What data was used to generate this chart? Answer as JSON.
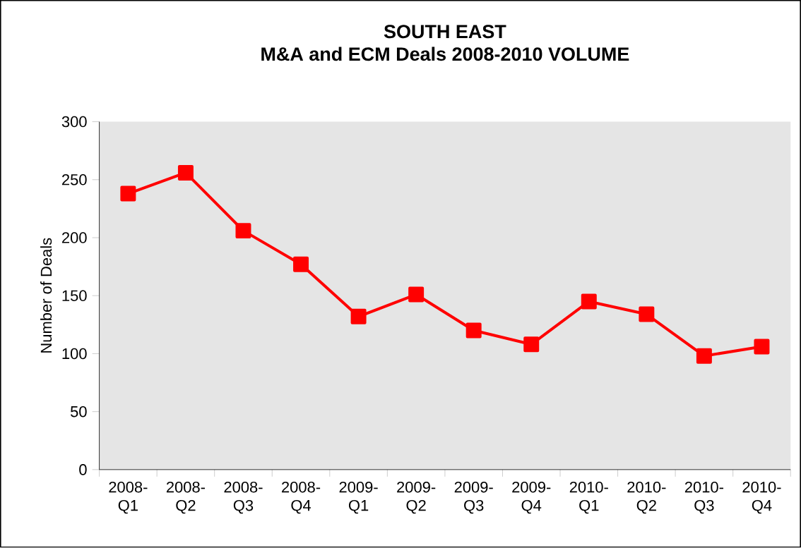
{
  "chart_data": {
    "type": "line",
    "title": "SOUTH EAST",
    "subtitle": "M&A and ECM Deals 2008-2010 VOLUME",
    "ylabel": "Number of Deals",
    "categories": [
      "2008-Q1",
      "2008-Q2",
      "2008-Q3",
      "2008-Q4",
      "2009-Q1",
      "2009-Q2",
      "2009-Q3",
      "2009-Q4",
      "2010-Q1",
      "2010-Q2",
      "2010-Q3",
      "2010-Q4"
    ],
    "series": [
      {
        "color": "#ff0000",
        "values": [
          238,
          256,
          206,
          177,
          132,
          151,
          120,
          108,
          145,
          134,
          98,
          106
        ]
      }
    ],
    "ylim": [
      0,
      300
    ],
    "yticks": [
      0,
      50,
      100,
      150,
      200,
      250,
      300
    ],
    "marker": "square",
    "line_style": "solid",
    "grid": false
  }
}
